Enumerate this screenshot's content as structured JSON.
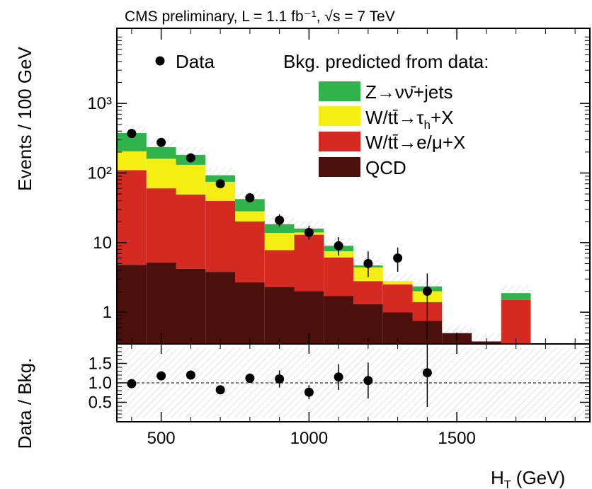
{
  "chart_data": {
    "type": "bar",
    "title": "CMS preliminary, L = 1.1 fb⁻¹, √s = 7 TeV",
    "xlabel": "H_T (GeV)",
    "xlim": [
      350,
      1950
    ],
    "main_panel": {
      "ylabel": "Events / 100 GeV",
      "yscale": "log",
      "ylim": [
        0.35,
        12000
      ],
      "yticks": [
        {
          "value": 1,
          "label": "1"
        },
        {
          "value": 10,
          "label": "10"
        },
        {
          "value": 100,
          "label": "10²"
        },
        {
          "value": 1000,
          "label": "10³"
        }
      ],
      "bin_edges": [
        350,
        450,
        550,
        650,
        750,
        850,
        950,
        1050,
        1150,
        1250,
        1350,
        1450,
        1550,
        1650,
        1750
      ],
      "stack_series": [
        {
          "name": "QCD",
          "color": "#4b0f0c",
          "values": [
            4.8,
            5.2,
            4.2,
            3.8,
            2.7,
            2.3,
            2.0,
            1.7,
            1.3,
            1.0,
            0.75,
            0.5,
            0.38,
            0.35
          ]
        },
        {
          "name": "W/tt̄→e/μ+X",
          "color": "#d52a22",
          "values": [
            105,
            55,
            45,
            36,
            17.5,
            5.5,
            11.0,
            4.4,
            1.5,
            1.5,
            0.65,
            0.0,
            0.0,
            1.15
          ]
        },
        {
          "name": "W/tt̄→τ_h+X",
          "color": "#f4ee13",
          "values": [
            95,
            100,
            82,
            35,
            8.0,
            6.0,
            1.0,
            1.4,
            1.6,
            0.3,
            0.6,
            0.0,
            0.0,
            0.0
          ]
        },
        {
          "name": "Z→νν̄+jets",
          "color": "#2fb34a",
          "values": [
            170,
            75,
            51,
            18,
            14,
            4.6,
            1.9,
            1.5,
            0.3,
            0.0,
            0.35,
            0.0,
            0.0,
            0.38
          ]
        }
      ],
      "data_points": {
        "name": "Data",
        "x": [
          400,
          500,
          600,
          700,
          800,
          900,
          1000,
          1100,
          1200,
          1300,
          1400
        ],
        "y": [
          370,
          275,
          165,
          70,
          44,
          21,
          14,
          9,
          5,
          6,
          2
        ],
        "y_low": [
          345,
          255,
          150,
          62,
          38,
          17,
          11,
          6.5,
          3.2,
          3.8,
          0.4
        ],
        "y_high": [
          395,
          295,
          180,
          78,
          50,
          25.5,
          17.5,
          12,
          7.5,
          8.5,
          3.6
        ]
      },
      "legend": {
        "position": "top-right",
        "data_label": "Data",
        "header": "Bkg. predicted from data:",
        "entries": [
          {
            "label_main": "Z→νν̄+jets",
            "color": "#2fb34a"
          },
          {
            "label_main": "W/tt̄→τ",
            "label_sub": "h",
            "label_tail": "+X",
            "color": "#f4ee13"
          },
          {
            "label_main": "W/tt̄→e/μ+X",
            "color": "#d52a22"
          },
          {
            "label_main": "QCD",
            "color": "#4b0f0c"
          }
        ]
      }
    },
    "ratio_panel": {
      "ylabel": "Data / Bkg.",
      "ylim": [
        0.0,
        2.0
      ],
      "yticks": [
        {
          "value": 0.5,
          "label": "0.5"
        },
        {
          "value": 1.0,
          "label": "1.0"
        },
        {
          "value": 1.5,
          "label": "1.5"
        }
      ],
      "reference_line": 1.0,
      "points": {
        "x": [
          400,
          500,
          600,
          700,
          800,
          900,
          1000,
          1100,
          1200,
          1400
        ],
        "y": [
          0.98,
          1.18,
          1.2,
          0.82,
          1.12,
          1.1,
          0.76,
          1.15,
          1.06,
          1.26
        ],
        "y_low": [
          0.94,
          1.14,
          1.16,
          0.76,
          1.0,
          0.88,
          0.58,
          0.82,
          0.6,
          0.38
        ],
        "y_high": [
          1.02,
          1.22,
          1.24,
          0.88,
          1.24,
          1.32,
          0.94,
          1.48,
          1.52,
          2.0
        ]
      }
    },
    "xticks": [
      {
        "value": 500,
        "label": "500"
      },
      {
        "value": 1000,
        "label": "1000"
      },
      {
        "value": 1500,
        "label": "1500"
      }
    ]
  }
}
